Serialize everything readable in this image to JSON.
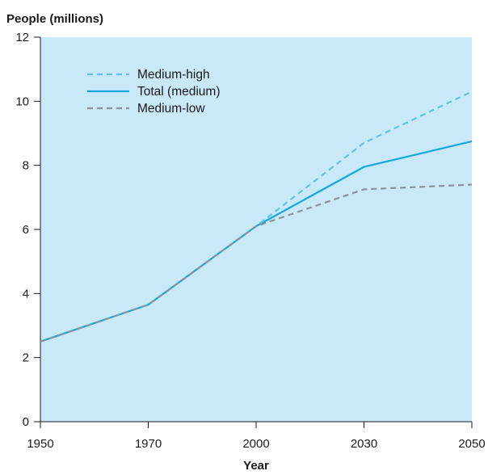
{
  "chart_data": {
    "type": "line",
    "xlabel": "Year",
    "ylabel": "People (millions)",
    "x": [
      "1950",
      "1970",
      "2000",
      "2030",
      "2050"
    ],
    "ylim": [
      0,
      12
    ],
    "yticks": [
      "0",
      "2",
      "4",
      "6",
      "8",
      "10",
      "12"
    ],
    "grid": false,
    "legend_position": "top-left",
    "colors": {
      "plot_background": "#c9e8f8",
      "medium_high": "#5ec4ec",
      "total_medium": "#15a8e0",
      "medium_low": "#8c9196"
    },
    "series": [
      {
        "name": "Medium-high",
        "key": "medium_high",
        "dashed": true,
        "values": [
          2.5,
          3.65,
          6.1,
          8.7,
          10.3
        ]
      },
      {
        "name": "Total (medium)",
        "key": "total_medium",
        "dashed": false,
        "values": [
          2.5,
          3.65,
          6.1,
          7.95,
          8.75
        ]
      },
      {
        "name": "Medium-low",
        "key": "medium_low",
        "dashed": true,
        "values": [
          2.5,
          3.65,
          6.1,
          7.25,
          7.4
        ]
      }
    ]
  }
}
